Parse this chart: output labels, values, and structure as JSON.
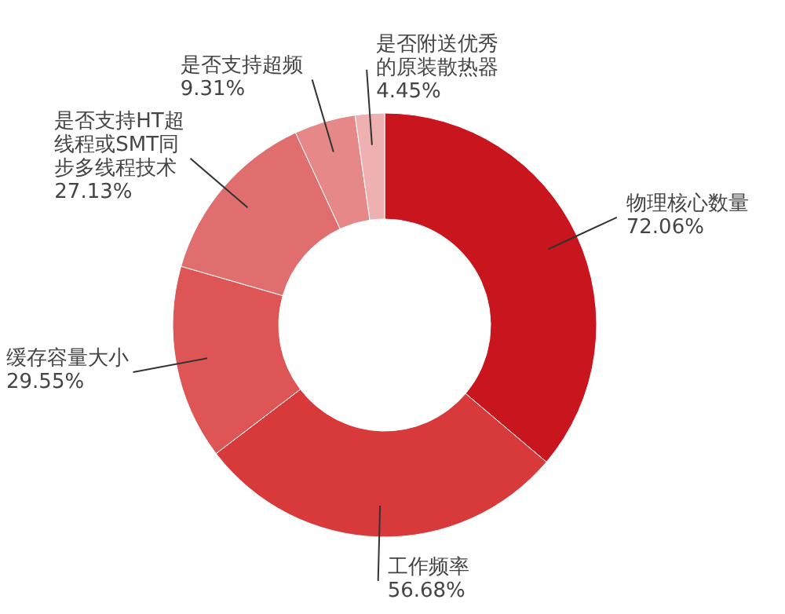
{
  "chart_data": {
    "type": "donut",
    "categories": [
      "物理核心数量",
      "工作频率",
      "缓存容量大小",
      "是否支持HT超线程或SMT同步多线程技术",
      "是否支持超频",
      "是否附送优秀的原装散热器"
    ],
    "values": [
      72.06,
      56.68,
      29.55,
      27.13,
      9.31,
      4.45
    ],
    "value_labels": [
      "72.06%",
      "56.68%",
      "29.55%",
      "27.13%",
      "9.31%",
      "4.45%"
    ],
    "colors": [
      "#c9151e",
      "#d83a3c",
      "#dd5555",
      "#e16e6e",
      "#e68888",
      "#eeb0b0"
    ]
  }
}
